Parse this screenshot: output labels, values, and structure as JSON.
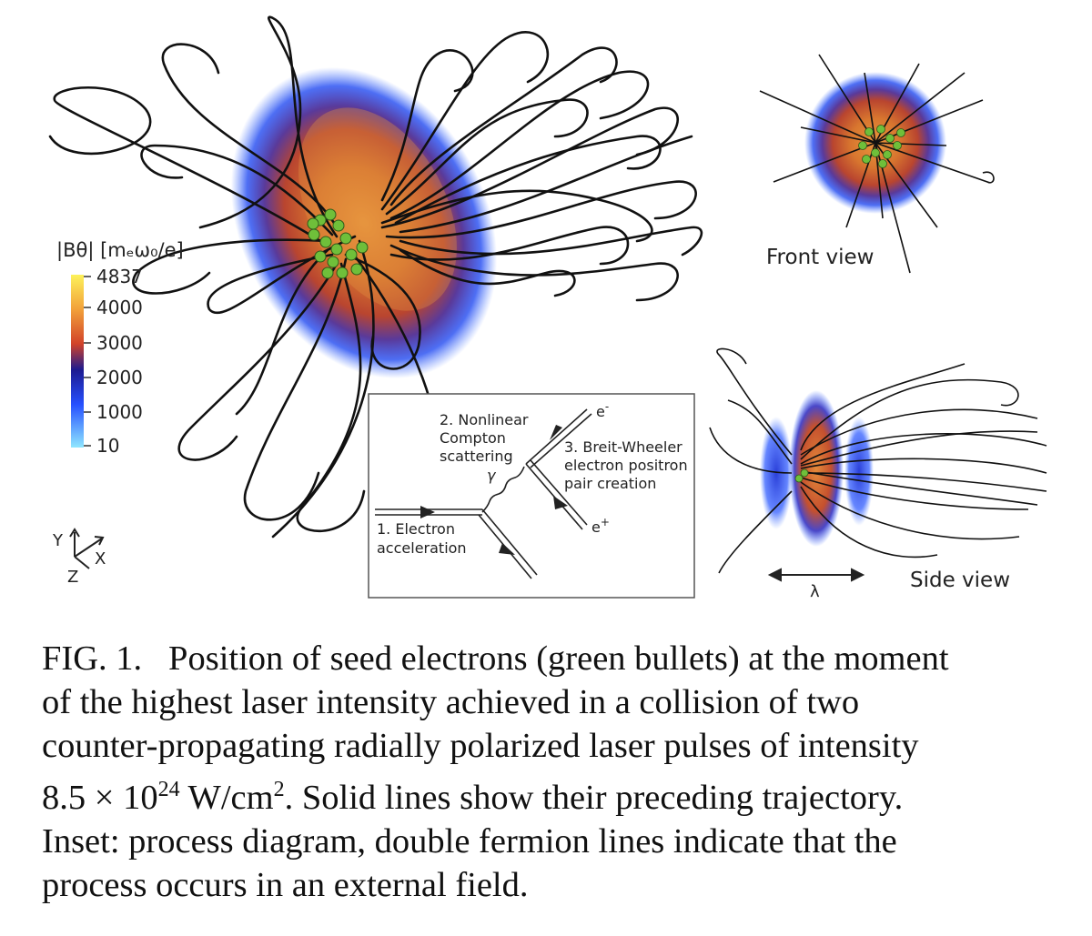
{
  "colorbar": {
    "label": "|Bθ| [mₑω₀/e]",
    "ticks": [
      "4837",
      "4000",
      "3000",
      "2000",
      "1000",
      "10"
    ]
  },
  "axes": {
    "y": "Y",
    "x": "X",
    "z": "Z"
  },
  "views": {
    "front": "Front view",
    "side": "Side view",
    "lambda": "λ"
  },
  "inset": {
    "step1": [
      "1. Electron",
      "acceleration"
    ],
    "step2": [
      "2. Nonlinear",
      "Compton",
      "scattering"
    ],
    "step3": [
      "3. Breit-Wheeler",
      "electron positron",
      "pair creation"
    ],
    "gamma": "γ",
    "eminus": "e",
    "eplus": "e"
  },
  "caption": {
    "label": "FIG. 1.",
    "lines": [
      "Position of seed electrons (green bullets) at the moment",
      "of the highest laser intensity achieved in a collision of two",
      "counter-propagating radially polarized laser pulses of intensity",
      "8.5 × 10",
      "24",
      " W/cm",
      "2",
      ". Solid lines show their preceding trajectory.",
      "Inset: process diagram, double fermion lines indicate that the",
      "process occurs in an external field."
    ]
  },
  "colors": {
    "field_low": "#2d5cff",
    "field_mid": "#c9512a",
    "field_high": "#f0a035",
    "electron": "#6fbf3a",
    "trajectory": "#111111"
  }
}
